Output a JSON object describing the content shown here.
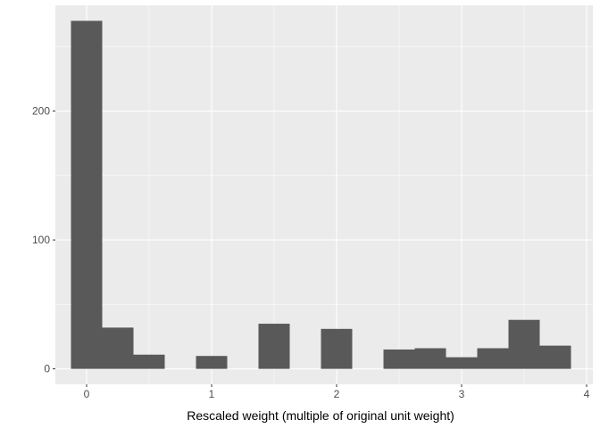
{
  "chart_data": {
    "type": "bar",
    "title": "",
    "xlabel": "Rescaled weight (multiple of original unit weight)",
    "ylabel": "",
    "xlim": [
      -0.25,
      4.05
    ],
    "ylim": [
      -12,
      282
    ],
    "x_ticks": [
      0,
      1,
      2,
      3,
      4
    ],
    "y_ticks": [
      0,
      100,
      200
    ],
    "bin_width": 0.25,
    "bins": [
      {
        "x": 0.0,
        "count": 270
      },
      {
        "x": 0.25,
        "count": 32
      },
      {
        "x": 0.5,
        "count": 11
      },
      {
        "x": 0.75,
        "count": 0
      },
      {
        "x": 1.0,
        "count": 10
      },
      {
        "x": 1.25,
        "count": 0
      },
      {
        "x": 1.5,
        "count": 35
      },
      {
        "x": 1.75,
        "count": 0
      },
      {
        "x": 2.0,
        "count": 31
      },
      {
        "x": 2.25,
        "count": 0
      },
      {
        "x": 2.5,
        "count": 15
      },
      {
        "x": 2.75,
        "count": 16
      },
      {
        "x": 3.0,
        "count": 9
      },
      {
        "x": 3.25,
        "count": 16
      },
      {
        "x": 3.5,
        "count": 38
      },
      {
        "x": 3.75,
        "count": 18
      }
    ],
    "grid": true,
    "colors": {
      "panel": "#ebebeb",
      "grid_major": "#ffffff",
      "bar": "#595959",
      "tick": "#333333"
    }
  }
}
